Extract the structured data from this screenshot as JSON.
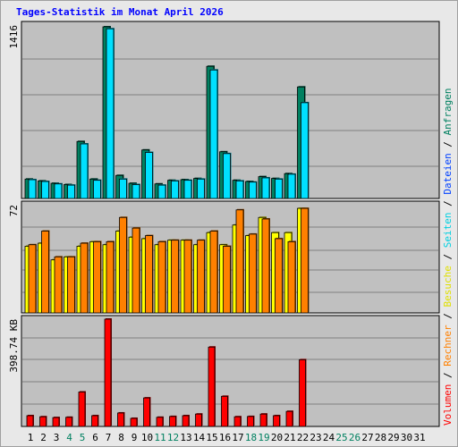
{
  "title": "Tages-Statistik im Monat April 2026",
  "chart_data": [
    {
      "type": "bar",
      "panel": "top",
      "ymax_label": "1416",
      "ylim": [
        0,
        1416
      ],
      "grid": true,
      "categories": [
        "1",
        "2",
        "3",
        "4",
        "5",
        "6",
        "7",
        "8",
        "9",
        "10",
        "11",
        "12",
        "13",
        "14",
        "15",
        "16",
        "17",
        "18",
        "19",
        "20",
        "21",
        "22",
        "23",
        "24",
        "25",
        "26",
        "27",
        "28",
        "29",
        "30",
        "31"
      ],
      "series": [
        {
          "name": "Anfragen",
          "color": "#008060",
          "values": [
            160,
            145,
            125,
            115,
            470,
            160,
            1416,
            190,
            125,
            400,
            120,
            150,
            155,
            165,
            1090,
            385,
            150,
            140,
            180,
            165,
            205,
            920,
            null,
            null,
            null,
            null,
            null,
            null,
            null,
            null,
            null
          ]
        },
        {
          "name": "Dateien",
          "color": "#00e0ff",
          "values": [
            155,
            140,
            120,
            110,
            450,
            150,
            1400,
            160,
            115,
            380,
            110,
            145,
            150,
            160,
            1060,
            370,
            145,
            135,
            170,
            160,
            200,
            790,
            null,
            null,
            null,
            null,
            null,
            null,
            null,
            null,
            null
          ]
        }
      ]
    },
    {
      "type": "bar",
      "panel": "middle",
      "ymax_label": "72",
      "ylim": [
        0,
        72
      ],
      "grid": true,
      "categories": [
        "1",
        "2",
        "3",
        "4",
        "5",
        "6",
        "7",
        "8",
        "9",
        "10",
        "11",
        "12",
        "13",
        "14",
        "15",
        "16",
        "17",
        "18",
        "19",
        "20",
        "21",
        "22",
        "23",
        "24",
        "25",
        "26",
        "27",
        "28",
        "29",
        "30",
        "31"
      ],
      "series": [
        {
          "name": "Seiten",
          "color": "#00e0ff",
          "values": [
            null,
            null,
            null,
            null,
            null,
            null,
            null,
            null,
            null,
            null,
            null,
            null,
            null,
            null,
            null,
            null,
            null,
            null,
            null,
            null,
            null,
            null,
            null,
            null,
            null,
            null,
            null,
            null,
            null,
            null,
            null
          ]
        },
        {
          "name": "Besuche",
          "color": "#ffff00",
          "values": [
            44,
            46,
            35,
            37,
            44,
            47,
            45,
            54,
            50,
            49,
            45,
            48,
            48,
            45,
            53,
            45,
            58,
            51,
            63,
            53,
            53,
            69,
            null,
            null,
            null,
            null,
            null,
            null,
            null,
            null,
            null
          ]
        },
        {
          "name": "Rechner",
          "color": "#ff8000",
          "values": [
            45,
            54,
            37,
            37,
            46,
            47,
            47,
            63,
            56,
            51,
            47,
            48,
            48,
            48,
            54,
            44,
            68,
            52,
            62,
            49,
            47,
            69,
            null,
            null,
            null,
            null,
            null,
            null,
            null,
            null,
            null
          ]
        }
      ]
    },
    {
      "type": "bar",
      "panel": "bottom",
      "ymax_label": "398.74 KB",
      "ylim": [
        0,
        398.74
      ],
      "grid": true,
      "categories": [
        "1",
        "2",
        "3",
        "4",
        "5",
        "6",
        "7",
        "8",
        "9",
        "10",
        "11",
        "12",
        "13",
        "14",
        "15",
        "16",
        "17",
        "18",
        "19",
        "20",
        "21",
        "22",
        "23",
        "24",
        "25",
        "26",
        "27",
        "28",
        "29",
        "30",
        "31"
      ],
      "series": [
        {
          "name": "Volumen",
          "color": "#ff0000",
          "values": [
            40,
            36,
            33,
            34,
            128,
            40,
            398.74,
            50,
            30,
            106,
            34,
            37,
            40,
            46,
            295,
            112,
            36,
            37,
            46,
            40,
            56,
            248,
            null,
            null,
            null,
            null,
            null,
            null,
            null,
            null,
            null
          ]
        }
      ]
    }
  ],
  "legend": {
    "items": [
      {
        "label": "Volumen",
        "color": "#ff0000"
      },
      {
        "label": "Rechner",
        "color": "#ff8000"
      },
      {
        "label": "Besuche",
        "color": "#e0e000"
      },
      {
        "label": "Seiten",
        "color": "#00d0e0"
      },
      {
        "label": "Dateien",
        "color": "#0040ff"
      },
      {
        "label": "Anfragen",
        "color": "#008060"
      }
    ],
    "separator": " / ",
    "placement": "right, vertical"
  },
  "x_axis": {
    "weekend_days": [
      "4",
      "5",
      "11",
      "12",
      "18",
      "19",
      "25",
      "26"
    ],
    "weekday_color": "#000000",
    "weekend_color": "#008060"
  }
}
